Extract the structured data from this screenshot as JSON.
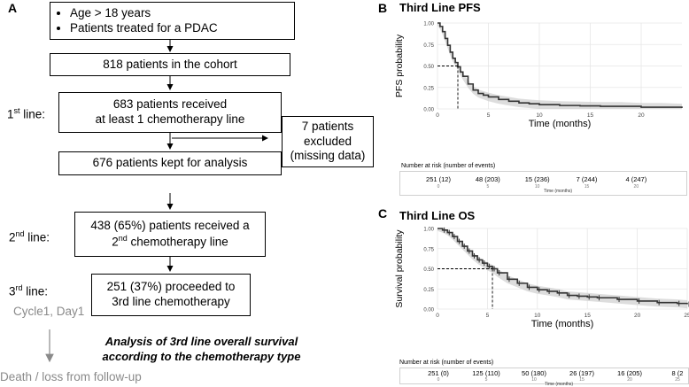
{
  "flowchart": {
    "panel_label": "A",
    "criteria": [
      "Age > 18 years",
      "Patients treated for a PDAC"
    ],
    "cohort": "818 patients in the cohort",
    "received_line1": "683 patients received",
    "received_line2": "at least 1 chemotherapy line",
    "excluded_line1": "7 patients",
    "excluded_line2": "excluded",
    "excluded_line3": "(missing data)",
    "kept": "676 patients kept for analysis",
    "second_line1": "438 (65%) patients received a",
    "second_line2_pre": "2",
    "second_line2_sup": "nd",
    "second_line2_post": " chemotherapy line",
    "third_line1": "251 (37%) proceeded to",
    "third_line2": "3rd line chemotherapy",
    "line_labels": [
      {
        "num": "1",
        "sup": "st",
        "text": " line:"
      },
      {
        "num": "2",
        "sup": "nd",
        "text": " line:"
      },
      {
        "num": "3",
        "sup": "rd",
        "text": " line:"
      }
    ],
    "cycle_label": "Cycle1, Day1",
    "analysis_line1": "Analysis of 3rd line overall survival",
    "analysis_line2": "according to the chemotherapy type",
    "death_label": "Death / loss from follow-up"
  },
  "chart_data": [
    {
      "panel_label": "B",
      "type": "line",
      "title": "Third Line PFS",
      "xlabel": "Time (months)",
      "ylabel": "PFS probability",
      "xlim": [
        0,
        24
      ],
      "ylim": [
        0,
        1
      ],
      "xticks": [
        0,
        5,
        10,
        15,
        20
      ],
      "yticks": [
        "0.00",
        "0.25",
        "0.50",
        "0.75",
        "1.00"
      ],
      "median": 2,
      "series": [
        {
          "x": [
            0,
            0.25,
            0.5,
            0.75,
            1,
            1.25,
            1.5,
            1.75,
            2,
            2.25,
            2.5,
            3,
            3.5,
            4,
            4.5,
            5,
            6,
            7,
            8,
            9,
            10,
            12,
            14,
            16,
            18,
            20,
            22,
            24
          ],
          "y": [
            1.0,
            0.96,
            0.9,
            0.82,
            0.74,
            0.66,
            0.59,
            0.54,
            0.49,
            0.43,
            0.38,
            0.29,
            0.22,
            0.18,
            0.16,
            0.14,
            0.11,
            0.09,
            0.07,
            0.06,
            0.05,
            0.04,
            0.035,
            0.03,
            0.03,
            0.02,
            0.02,
            0.01
          ]
        }
      ],
      "risk_table": {
        "title": "Number at risk (number of events)",
        "times": [
          0,
          5,
          10,
          15,
          20
        ],
        "values": [
          "251 (12)",
          "48 (203)",
          "15 (236)",
          "7 (244)",
          "4 (247)"
        ],
        "axis_label": "Time (months)"
      }
    },
    {
      "panel_label": "C",
      "type": "line",
      "title": "Third Line OS",
      "xlabel": "Time (months)",
      "ylabel": "Survival probability",
      "xlim": [
        0,
        25
      ],
      "ylim": [
        0,
        1
      ],
      "xticks": [
        0,
        5,
        10,
        15,
        20,
        25
      ],
      "yticks": [
        "0.00",
        "0.25",
        "0.50",
        "0.75",
        "1.00"
      ],
      "median": 5.5,
      "series": [
        {
          "x": [
            0,
            0.5,
            1,
            1.5,
            2,
            2.5,
            3,
            3.5,
            4,
            4.5,
            5,
            5.5,
            6,
            7,
            8,
            9,
            10,
            11,
            12,
            13,
            14,
            15,
            16,
            18,
            20,
            22,
            24,
            25
          ],
          "y": [
            1.0,
            0.98,
            0.95,
            0.9,
            0.84,
            0.78,
            0.72,
            0.66,
            0.61,
            0.57,
            0.53,
            0.5,
            0.45,
            0.37,
            0.32,
            0.27,
            0.24,
            0.22,
            0.2,
            0.17,
            0.16,
            0.15,
            0.14,
            0.12,
            0.1,
            0.08,
            0.07,
            0.06
          ]
        }
      ],
      "risk_table": {
        "title": "Number at risk (number of events)",
        "times": [
          0,
          5,
          10,
          15,
          20,
          25
        ],
        "values": [
          "251 (0)",
          "125 (110)",
          "50 (180)",
          "26 (197)",
          "16 (205)",
          "8 (2"
        ],
        "axis_label": "Time (months)"
      }
    }
  ]
}
